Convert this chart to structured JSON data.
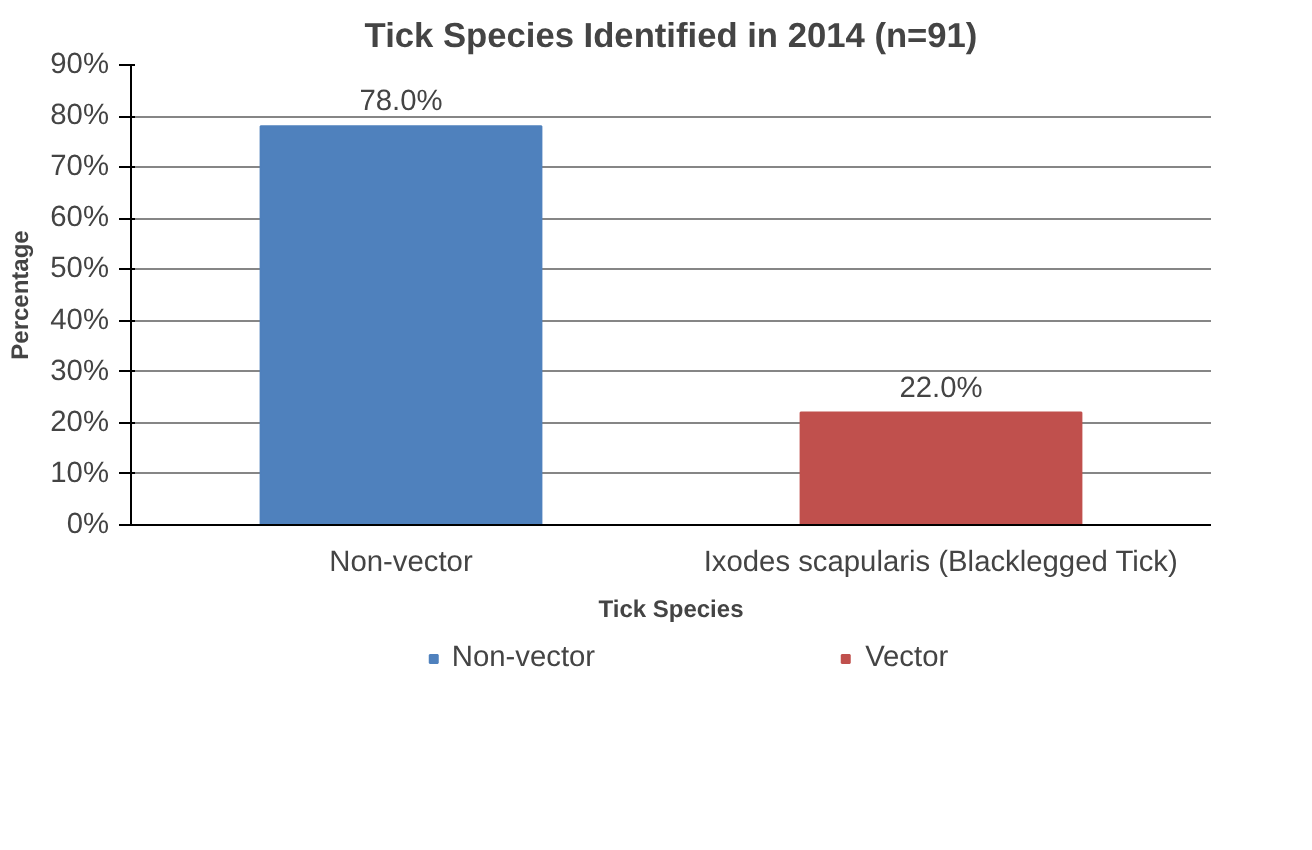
{
  "chart_data": {
    "type": "bar",
    "title": "Tick Species Identified in 2014 (n=91)",
    "xlabel": "Tick Species",
    "ylabel": "Percentage",
    "categories": [
      "Non-vector",
      "Ixodes scapularis (Blacklegged Tick)"
    ],
    "stacked": true,
    "series": [
      {
        "name": "Non-vector",
        "color": "#4f81bd",
        "values": [
          78.0,
          null
        ],
        "value_labels": [
          "78.0%",
          null
        ]
      },
      {
        "name": "Vector",
        "color": "#c0504d",
        "values": [
          null,
          22.0
        ],
        "value_labels": [
          null,
          "22.0%"
        ]
      }
    ],
    "ylim": [
      0,
      90
    ],
    "yticks": [
      {
        "value": 0,
        "label": "0%"
      },
      {
        "value": 10,
        "label": "10%"
      },
      {
        "value": 20,
        "label": "20%"
      },
      {
        "value": 30,
        "label": "30%"
      },
      {
        "value": 40,
        "label": "40%"
      },
      {
        "value": 50,
        "label": "50%"
      },
      {
        "value": 60,
        "label": "60%"
      },
      {
        "value": 70,
        "label": "70%"
      },
      {
        "value": 80,
        "label": "80%"
      },
      {
        "value": 90,
        "label": "90%"
      }
    ],
    "grid": "y",
    "legend": "bottom"
  }
}
